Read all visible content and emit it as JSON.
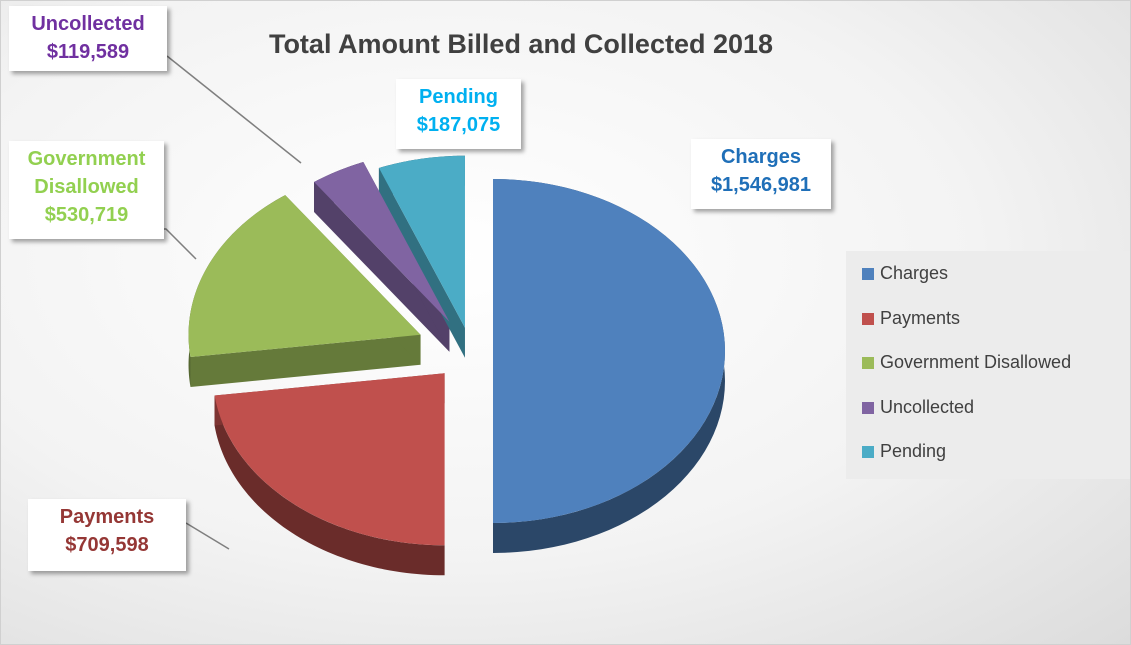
{
  "chart_data": {
    "type": "pie",
    "title": "Total Amount Billed and Collected 2018",
    "categories": [
      "Charges",
      "Payments",
      "Government Disallowed",
      "Uncollected",
      "Pending"
    ],
    "values": [
      1546981,
      709598,
      530719,
      119589,
      187075
    ],
    "value_labels": [
      "$1,546,981",
      "$709,598",
      "$530,719",
      "$119,589",
      "$187,075"
    ],
    "colors": [
      "#4f81bd",
      "#c0504d",
      "#9bbb59",
      "#8064a2",
      "#4bacc6"
    ],
    "label_colors": [
      "#1f6fb8",
      "#953735",
      "#92d050",
      "#7030a0",
      "#00b0f0"
    ],
    "legend": "right"
  }
}
